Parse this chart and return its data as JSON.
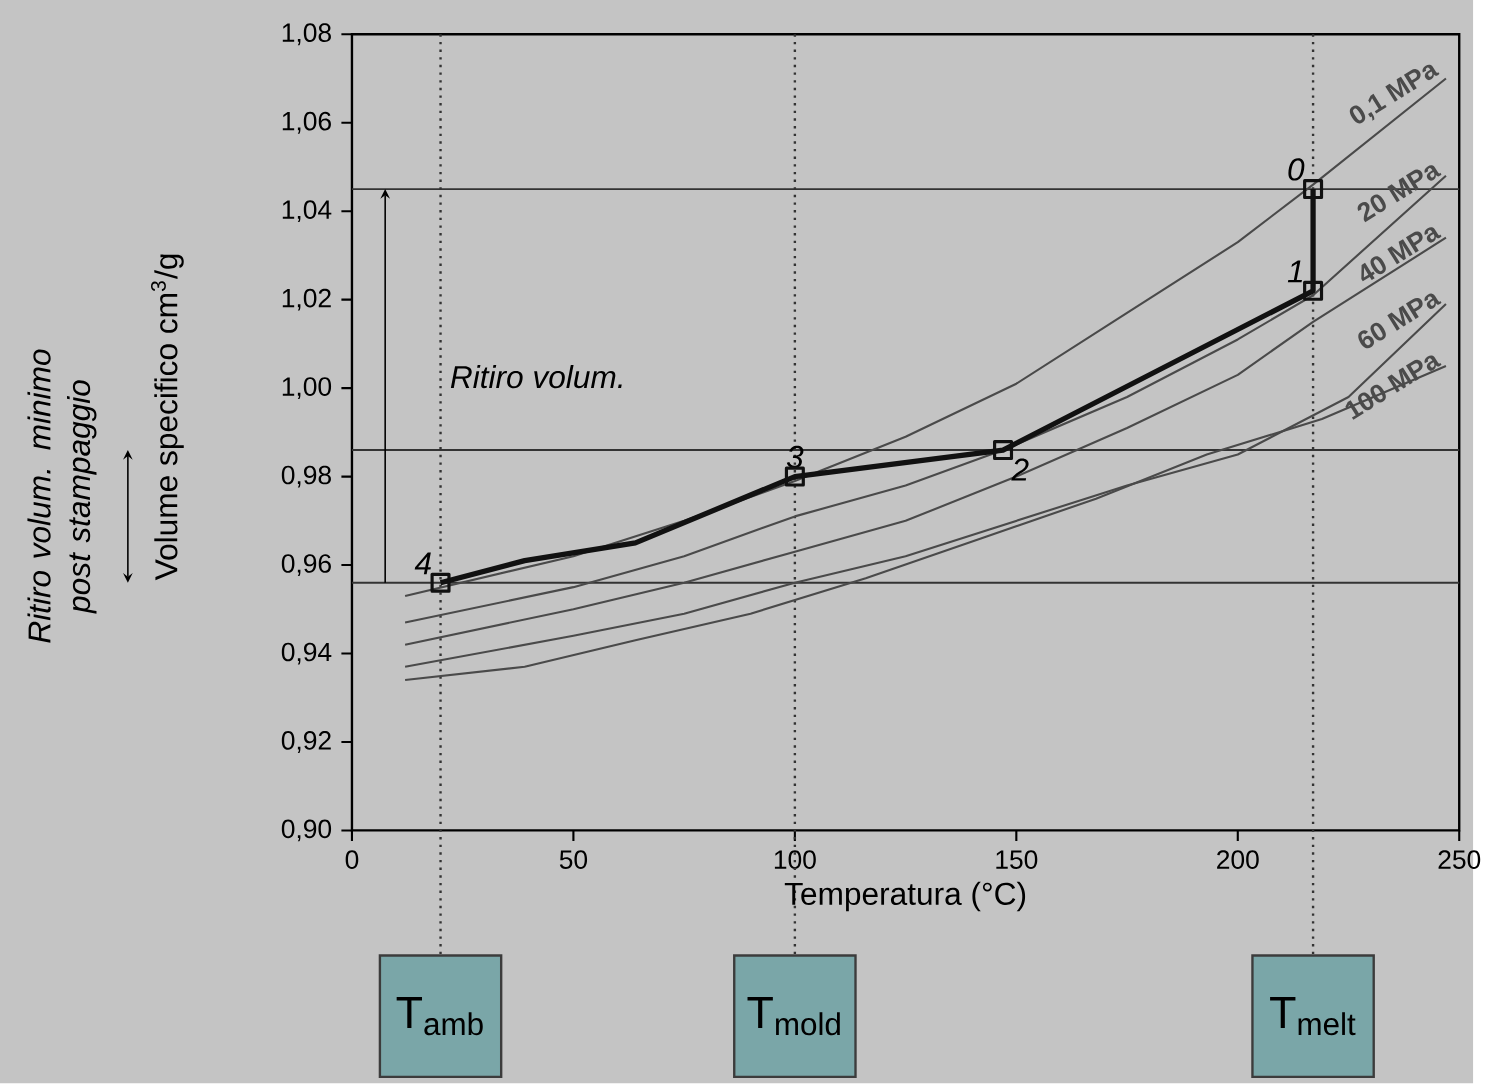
{
  "chart_data": {
    "type": "line",
    "xlabel": "Temperatura (°C)",
    "ylabel": "Volume specifico cm$^{3}$/g",
    "xlim": [
      0,
      250
    ],
    "ylim": [
      0.9,
      1.08
    ],
    "xticks": [
      0,
      50,
      100,
      150,
      200,
      250
    ],
    "yticks": [
      {
        "value": 0.9,
        "label": "0,90"
      },
      {
        "value": 0.92,
        "label": "0,92"
      },
      {
        "value": 0.94,
        "label": "0,94"
      },
      {
        "value": 0.96,
        "label": "0,96"
      },
      {
        "value": 0.98,
        "label": "0,98"
      },
      {
        "value": 1.0,
        "label": "1,00"
      },
      {
        "value": 1.02,
        "label": "1,02"
      },
      {
        "value": 1.04,
        "label": "1,04"
      },
      {
        "value": 1.06,
        "label": "1,06"
      },
      {
        "value": 1.08,
        "label": "1,08"
      }
    ],
    "marker": "none",
    "series": [
      {
        "name": "0,1 MPa",
        "color": "#4a4a4a",
        "x": [
          12,
          50,
          75,
          100,
          125,
          150,
          175,
          200,
          217,
          247
        ],
        "values": [
          0.953,
          0.962,
          0.97,
          0.979,
          0.989,
          1.001,
          1.017,
          1.033,
          1.046,
          1.07
        ]
      },
      {
        "name": "20 MPa",
        "color": "#4a4a4a",
        "x": [
          12,
          50,
          75,
          100,
          125,
          147,
          175,
          200,
          217,
          247
        ],
        "values": [
          0.947,
          0.955,
          0.962,
          0.971,
          0.978,
          0.986,
          0.998,
          1.011,
          1.021,
          1.048
        ]
      },
      {
        "name": "40 MPa",
        "color": "#4a4a4a",
        "x": [
          12,
          50,
          75,
          100,
          125,
          150,
          175,
          200,
          217,
          247
        ],
        "values": [
          0.942,
          0.95,
          0.956,
          0.963,
          0.97,
          0.98,
          0.991,
          1.003,
          1.015,
          1.034
        ]
      },
      {
        "name": "60 MPa",
        "color": "#4a4a4a",
        "x": [
          12,
          50,
          75,
          100,
          125,
          150,
          175,
          200,
          225,
          247
        ],
        "values": [
          0.937,
          0.944,
          0.949,
          0.956,
          0.962,
          0.97,
          0.978,
          0.985,
          0.998,
          1.019
        ]
      },
      {
        "name": "100 MPa",
        "color": "#4a4a4a",
        "x": [
          12,
          39,
          64,
          90,
          116,
          142,
          168,
          193,
          219,
          247
        ],
        "values": [
          0.934,
          0.937,
          0.943,
          0.949,
          0.957,
          0.966,
          0.975,
          0.985,
          0.993,
          1.005
        ]
      },
      {
        "type": "line",
        "color": "#111111",
        "x": [
          217,
          217,
          147,
          100,
          64,
          39,
          20
        ],
        "values": [
          1.045,
          1.022,
          0.986,
          0.98,
          0.965,
          0.961,
          0.956
        ]
      },
      {
        "type": "scatter",
        "marker": "square",
        "color": "#111111",
        "x": [
          217,
          217,
          147,
          100,
          20
        ],
        "values": [
          1.045,
          1.022,
          0.986,
          0.98,
          0.956
        ]
      }
    ],
    "ref_lines": [
      {
        "axis": "y",
        "value": 1.045,
        "color": "#333333"
      },
      {
        "axis": "y",
        "value": 0.986,
        "color": "#333333"
      },
      {
        "axis": "y",
        "value": 0.956,
        "color": "#333333"
      },
      {
        "axis": "x",
        "value": 20,
        "label": "T$_{amb}$",
        "line_style": "dotted",
        "color": "#333333"
      },
      {
        "axis": "x",
        "value": 100,
        "label": "T$_{mold}$",
        "line_style": "dotted",
        "color": "#333333"
      },
      {
        "axis": "x",
        "value": 217,
        "label": "T$_{melt}$",
        "line_style": "dotted",
        "color": "#333333"
      }
    ],
    "annotations": [
      "Ritiro volum.",
      "Ritiro volum. minimo post stampaggio",
      {
        "text": "0",
        "x": 217,
        "y": 1.045
      },
      {
        "text": "1",
        "x": 217,
        "y": 1.022
      },
      {
        "text": "2",
        "x": 147,
        "y": 0.986
      },
      {
        "text": "3",
        "x": 100,
        "y": 0.98
      },
      {
        "text": "4",
        "x": 20,
        "y": 0.956
      }
    ]
  }
}
